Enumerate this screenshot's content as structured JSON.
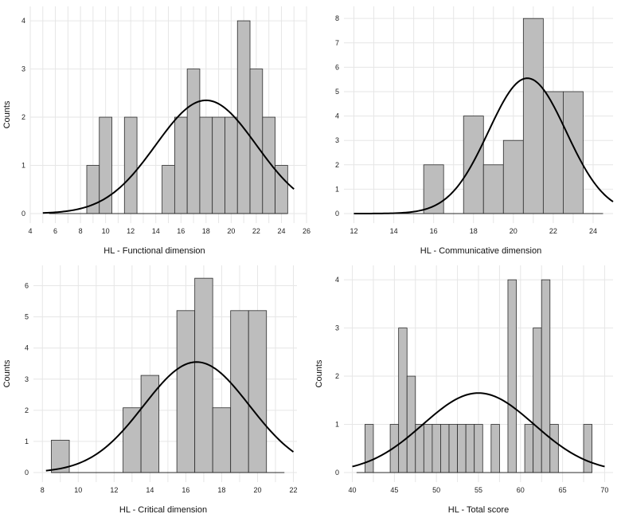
{
  "chart_data": [
    {
      "type": "bar",
      "title": "",
      "xlabel": "HL - Functional dimension",
      "ylabel": "Counts",
      "xlim": [
        4,
        26
      ],
      "ylim": [
        0,
        4.2
      ],
      "xticks": [
        4,
        6,
        8,
        10,
        12,
        14,
        16,
        18,
        20,
        22,
        24,
        26
      ],
      "yticks": [
        0,
        1,
        2,
        3,
        4
      ],
      "baseline": [
        5.5,
        24.5
      ],
      "bins": [
        {
          "start": 8.5,
          "end": 9.5,
          "count": 1
        },
        {
          "start": 9.5,
          "end": 10.5,
          "count": 2
        },
        {
          "start": 11.5,
          "end": 12.5,
          "count": 2
        },
        {
          "start": 14.5,
          "end": 15.5,
          "count": 1
        },
        {
          "start": 15.5,
          "end": 16.5,
          "count": 2
        },
        {
          "start": 16.5,
          "end": 17.5,
          "count": 3
        },
        {
          "start": 17.5,
          "end": 18.5,
          "count": 2
        },
        {
          "start": 18.5,
          "end": 19.5,
          "count": 2
        },
        {
          "start": 19.5,
          "end": 20.5,
          "count": 2
        },
        {
          "start": 20.5,
          "end": 21.5,
          "count": 4
        },
        {
          "start": 21.5,
          "end": 22.5,
          "count": 3
        },
        {
          "start": 22.5,
          "end": 23.5,
          "count": 2
        },
        {
          "start": 23.5,
          "end": 24.5,
          "count": 1
        }
      ],
      "normal_curve": {
        "mean": 18,
        "sd": 4,
        "peak": 2.35,
        "range": [
          5,
          25
        ]
      }
    },
    {
      "type": "bar",
      "title": "",
      "xlabel": "HL - Communicative dimension",
      "ylabel": "",
      "xlim": [
        11.5,
        25
      ],
      "ylim": [
        0,
        8.3
      ],
      "xticks": [
        12,
        14,
        16,
        18,
        20,
        22,
        24
      ],
      "yticks": [
        0,
        1,
        2,
        3,
        4,
        5,
        6,
        7,
        8
      ],
      "baseline": [
        12.3,
        24.5
      ],
      "bins": [
        {
          "start": 15.5,
          "end": 16.5,
          "count": 2
        },
        {
          "start": 17.5,
          "end": 18.5,
          "count": 4
        },
        {
          "start": 18.5,
          "end": 19.5,
          "count": 2
        },
        {
          "start": 19.5,
          "end": 20.5,
          "count": 3
        },
        {
          "start": 20.5,
          "end": 21.5,
          "count": 8
        },
        {
          "start": 21.5,
          "end": 22.5,
          "count": 5
        },
        {
          "start": 22.5,
          "end": 23.5,
          "count": 5
        }
      ],
      "normal_curve": {
        "mean": 20.7,
        "sd": 1.95,
        "peak": 5.55,
        "range": [
          12,
          25
        ]
      }
    },
    {
      "type": "bar",
      "title": "",
      "xlabel": "HL - Critical dimension",
      "ylabel": "Counts",
      "xlim": [
        7.5,
        22.2
      ],
      "ylim": [
        0,
        6.5
      ],
      "xticks": [
        8,
        10,
        12,
        14,
        16,
        18,
        20,
        22
      ],
      "yticks": [
        0,
        1,
        2,
        3,
        4,
        5,
        6
      ],
      "baseline": [
        8.5,
        21.5
      ],
      "bins": [
        {
          "start": 8.5,
          "end": 9.5,
          "count": 1.04
        },
        {
          "start": 12.5,
          "end": 13.5,
          "count": 2.08
        },
        {
          "start": 13.5,
          "end": 14.5,
          "count": 3.12
        },
        {
          "start": 15.5,
          "end": 16.5,
          "count": 5.2
        },
        {
          "start": 16.5,
          "end": 17.5,
          "count": 6.24
        },
        {
          "start": 17.5,
          "end": 18.5,
          "count": 2.08
        },
        {
          "start": 18.5,
          "end": 19.5,
          "count": 5.2
        },
        {
          "start": 19.5,
          "end": 20.5,
          "count": 5.2
        }
      ],
      "normal_curve": {
        "mean": 16.6,
        "sd": 2.95,
        "peak": 3.55,
        "range": [
          8.2,
          22
        ]
      }
    },
    {
      "type": "bar",
      "title": "",
      "xlabel": "HL - Total score",
      "ylabel": "Counts",
      "xlim": [
        39,
        71
      ],
      "ylim": [
        0,
        4.2
      ],
      "xticks": [
        40,
        45,
        50,
        55,
        60,
        65,
        70
      ],
      "yticks": [
        0,
        1,
        2,
        3,
        4
      ],
      "baseline": [
        40.5,
        68.5
      ],
      "bins": [
        {
          "start": 41.5,
          "end": 42.5,
          "count": 1
        },
        {
          "start": 44.5,
          "end": 45.5,
          "count": 1
        },
        {
          "start": 45.5,
          "end": 46.5,
          "count": 3
        },
        {
          "start": 46.5,
          "end": 47.5,
          "count": 2
        },
        {
          "start": 47.5,
          "end": 48.5,
          "count": 1
        },
        {
          "start": 48.5,
          "end": 49.5,
          "count": 1
        },
        {
          "start": 49.5,
          "end": 50.5,
          "count": 1
        },
        {
          "start": 50.5,
          "end": 51.5,
          "count": 1
        },
        {
          "start": 51.5,
          "end": 52.5,
          "count": 1
        },
        {
          "start": 52.5,
          "end": 53.5,
          "count": 1
        },
        {
          "start": 53.5,
          "end": 54.5,
          "count": 1
        },
        {
          "start": 54.5,
          "end": 55.5,
          "count": 1
        },
        {
          "start": 56.5,
          "end": 57.5,
          "count": 1
        },
        {
          "start": 58.5,
          "end": 59.5,
          "count": 4
        },
        {
          "start": 60.5,
          "end": 61.5,
          "count": 1
        },
        {
          "start": 61.5,
          "end": 62.5,
          "count": 3
        },
        {
          "start": 62.5,
          "end": 63.5,
          "count": 4
        },
        {
          "start": 63.5,
          "end": 64.5,
          "count": 1
        },
        {
          "start": 67.5,
          "end": 68.5,
          "count": 1
        }
      ],
      "normal_curve": {
        "mean": 55,
        "sd": 6.6,
        "peak": 1.65,
        "range": [
          40,
          70
        ]
      }
    }
  ]
}
